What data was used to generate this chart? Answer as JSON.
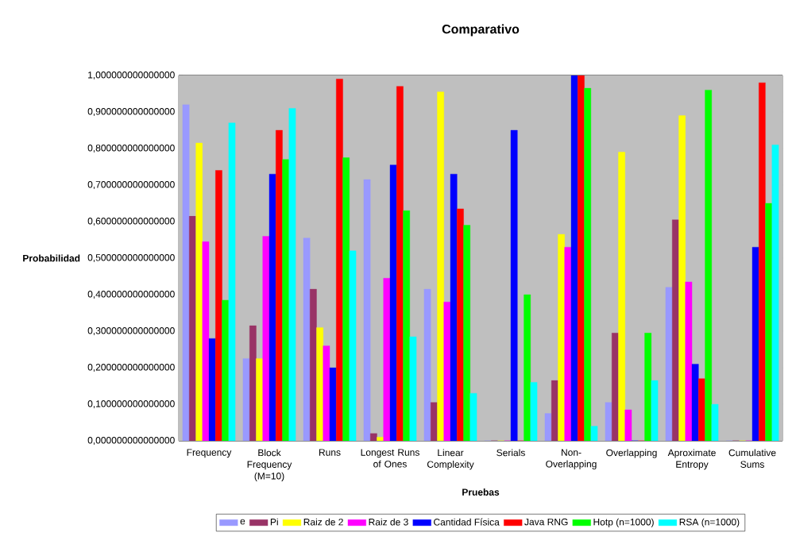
{
  "chart_data": {
    "type": "bar",
    "title": "Comparativo",
    "xlabel": "Pruebas",
    "ylabel": "Probabilidad",
    "categories": [
      "Frequency",
      "Block Frequency (M=10)",
      "Runs",
      "Longest Runs of Ones",
      "Linear Complexity",
      "Serials",
      "Non-Overlapping",
      "Overlapping",
      "Aproximate Entropy",
      "Cumulative Sums"
    ],
    "series": [
      {
        "name": "e",
        "color": "#9999ff",
        "values": [
          0.92,
          0.225,
          0.555,
          0.715,
          0.415,
          0,
          0.075,
          0.105,
          0.42,
          0
        ]
      },
      {
        "name": "Pi",
        "color": "#993366",
        "values": [
          0.615,
          0.315,
          0.415,
          0.02,
          0.105,
          0,
          0.165,
          0.295,
          0.605,
          0
        ]
      },
      {
        "name": "Raiz de 2",
        "color": "#ffff00",
        "values": [
          0.815,
          0.225,
          0.31,
          0.01,
          0.955,
          0,
          0.565,
          0.79,
          0.89,
          0
        ]
      },
      {
        "name": "Raiz de 3",
        "color": "#ff00ff",
        "values": [
          0.545,
          0.56,
          0.26,
          0.445,
          0.38,
          0,
          0.53,
          0.085,
          0.435,
          0
        ]
      },
      {
        "name": "Cantidad Física",
        "color": "#0000ff",
        "values": [
          0.28,
          0.73,
          0.2,
          0.755,
          0.73,
          0.85,
          1.0,
          0,
          0.21,
          0.53
        ]
      },
      {
        "name": "Java RNG",
        "color": "#ff0000",
        "values": [
          0.74,
          0.85,
          0.99,
          0.97,
          0.635,
          0,
          1.0,
          0,
          0.17,
          0.98
        ]
      },
      {
        "name": "Hotp (n=1000)",
        "color": "#00ff00",
        "values": [
          0.385,
          0.77,
          0.775,
          0.63,
          0.59,
          0.4,
          0.965,
          0.295,
          0.96,
          0.65
        ]
      },
      {
        "name": "RSA (n=1000)",
        "color": "#00ffff",
        "values": [
          0.87,
          0.91,
          0.52,
          0.285,
          0.13,
          0.16,
          0.04,
          0.165,
          0.1,
          0.81
        ]
      }
    ],
    "ylim": [
      0,
      1
    ],
    "yticks": [
      {
        "value": 0,
        "label": "0,000000000000000"
      },
      {
        "value": 0.1,
        "label": "0,100000000000000"
      },
      {
        "value": 0.2,
        "label": "0,200000000000000"
      },
      {
        "value": 0.3,
        "label": "0,300000000000000"
      },
      {
        "value": 0.4,
        "label": "0,400000000000000"
      },
      {
        "value": 0.5,
        "label": "0,500000000000000"
      },
      {
        "value": 0.6,
        "label": "0,600000000000000"
      },
      {
        "value": 0.7,
        "label": "0,700000000000000"
      },
      {
        "value": 0.8,
        "label": "0,800000000000000"
      },
      {
        "value": 0.9,
        "label": "0,900000000000000"
      },
      {
        "value": 1.0,
        "label": "1,000000000000000"
      }
    ],
    "grid": "y",
    "legend": "bottom"
  }
}
